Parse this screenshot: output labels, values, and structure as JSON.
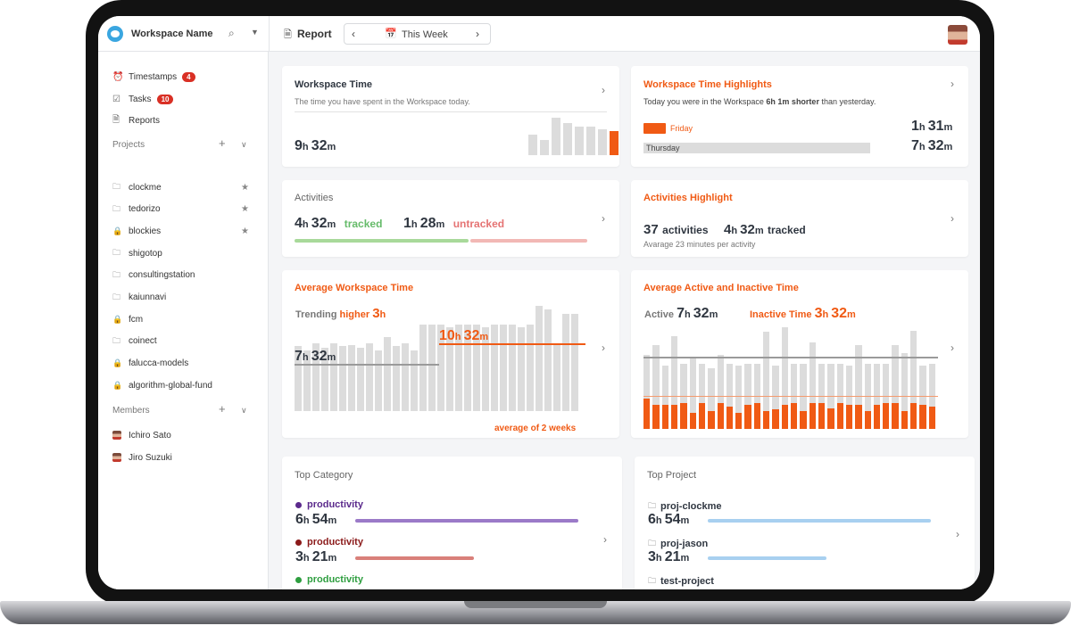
{
  "topbar": {
    "workspace_name": "Workspace Name",
    "report_label": "Report",
    "week_label": "This Week",
    "prev_glyph": "‹",
    "next_glyph": "›"
  },
  "sidebar": {
    "nav": [
      {
        "label": "Timestamps",
        "badge": "4",
        "icon": "alarm-icon"
      },
      {
        "label": "Tasks",
        "badge": "10",
        "icon": "tasks-icon"
      },
      {
        "label": "Reports",
        "icon": "reports-icon"
      }
    ],
    "projects_title": "Projects",
    "projects": [
      {
        "label": "clockme",
        "icon": "folder-icon",
        "starred": true
      },
      {
        "label": "tedorizo",
        "icon": "folder-icon",
        "starred": true
      },
      {
        "label": "blockies",
        "icon": "lock-icon",
        "starred": true
      },
      {
        "label": "shigotop",
        "icon": "folder-icon"
      },
      {
        "label": "consultingstation",
        "icon": "folder-icon"
      },
      {
        "label": "kaiunnavi",
        "icon": "folder-icon"
      },
      {
        "label": "fcm",
        "icon": "lock-icon"
      },
      {
        "label": "coinect",
        "icon": "folder-icon"
      },
      {
        "label": "falucca-models",
        "icon": "lock-icon"
      },
      {
        "label": "algorithm-global-fund",
        "icon": "lock-icon"
      }
    ],
    "members_title": "Members",
    "members": [
      {
        "label": "Ichiro Sato"
      },
      {
        "label": "Jiro Suzuki"
      }
    ]
  },
  "workspace_time": {
    "title": "Workspace Time",
    "subtitle": "The time you have spent in the Workspace today.",
    "hours": "9",
    "minutes": "32",
    "bars": [
      0.55,
      0.4,
      1.0,
      0.85,
      0.75,
      0.75,
      0.7,
      0.65
    ]
  },
  "highlights": {
    "title": "Workspace Time Highlights",
    "text_pre": "Today you were in the Workspace",
    "text_bold": "6h 1m shorter",
    "text_post": "than yesterday.",
    "today_label": "Friday",
    "today_h": "1",
    "today_m": "31",
    "yesterday_label": "Thursday",
    "yesterday_h": "7",
    "yesterday_m": "32",
    "today_fraction": 0.1
  },
  "activities": {
    "title": "Activities",
    "tracked_h": "4",
    "tracked_m": "32",
    "tracked_label": "tracked",
    "untracked_h": "1",
    "untracked_m": "28",
    "untracked_label": "untracked",
    "tracked_fraction": 0.6
  },
  "activities_highlight": {
    "title": "Activities Highlight",
    "count": "37",
    "count_label": "activities",
    "tracked_h": "4",
    "tracked_m": "32",
    "tracked_label": "tracked",
    "average": "Avarage 23 minutes per activity"
  },
  "avg_workspace": {
    "title": "Average Workspace Time",
    "trending_pre": "Trending",
    "trending_word": "higher",
    "trending_n": "3",
    "trending_u": "h",
    "base_h": "7",
    "base_m": "32",
    "avg_h": "10",
    "avg_m": "32",
    "avg_label": "average of 2 weeks",
    "bars": [
      0.62,
      0.58,
      0.64,
      0.6,
      0.64,
      0.62,
      0.63,
      0.6,
      0.64,
      0.58,
      0.7,
      0.62,
      0.64,
      0.58,
      0.82,
      0.82,
      0.82,
      0.8,
      0.82,
      0.82,
      0.82,
      0.8,
      0.82,
      0.82,
      0.82,
      0.8,
      0.82,
      1.0,
      0.97,
      0.64,
      0.92,
      0.92
    ]
  },
  "active_inactive": {
    "title": "Average Active and Inactive Time",
    "active_label": "Active",
    "active_h": "7",
    "active_m": "32",
    "inactive_label": "Inactive Time",
    "inactive_h": "3",
    "inactive_m": "32",
    "gray": [
      0.7,
      0.8,
      0.6,
      0.88,
      0.62,
      0.68,
      0.62,
      0.58,
      0.7,
      0.62,
      0.6,
      0.62,
      0.62,
      0.92,
      0.6,
      0.97,
      0.62,
      0.62,
      0.82,
      0.62,
      0.62,
      0.62,
      0.6,
      0.8,
      0.62,
      0.62,
      0.62,
      0.8,
      0.72,
      0.93,
      0.6,
      0.62
    ],
    "orange": [
      0.38,
      0.3,
      0.3,
      0.3,
      0.32,
      0.2,
      0.32,
      0.22,
      0.32,
      0.28,
      0.2,
      0.3,
      0.32,
      0.22,
      0.24,
      0.3,
      0.32,
      0.22,
      0.32,
      0.32,
      0.26,
      0.32,
      0.3,
      0.3,
      0.22,
      0.3,
      0.32,
      0.32,
      0.22,
      0.32,
      0.3,
      0.28
    ]
  },
  "top_category": {
    "title": "Top Category",
    "items": [
      {
        "label": "productivity",
        "time_h": "6",
        "time_m": "54",
        "color": "#5b2a8c",
        "bar_color": "#9b7ac8",
        "fraction": 1.0
      },
      {
        "label": "productivity",
        "time_h": "3",
        "time_m": "21",
        "color": "#8b1a1a",
        "bar_color": "#d9807a",
        "fraction": 0.53
      },
      {
        "label": "productivity",
        "color": "#2e9e3f"
      }
    ]
  },
  "top_project": {
    "title": "Top Project",
    "items": [
      {
        "label": "proj-clockme",
        "time_h": "6",
        "time_m": "54",
        "fraction": 1.0
      },
      {
        "label": "proj-jason",
        "time_h": "3",
        "time_m": "21",
        "fraction": 0.53
      },
      {
        "label": "test-project"
      }
    ],
    "bar_color": "#a8d0f0"
  },
  "colors": {
    "accent": "#f05a14",
    "bar_gray": "#dcdcdc",
    "badge": "#d93025"
  }
}
